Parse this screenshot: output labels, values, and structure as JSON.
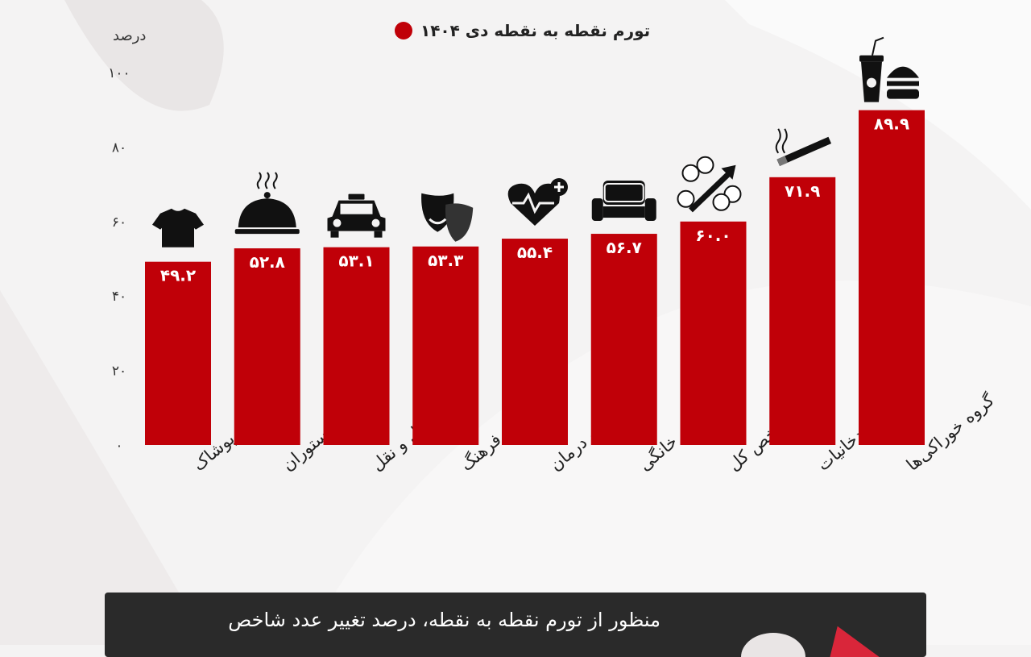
{
  "legend": {
    "label": "تورم نقطه به نقطه دی ۱۴۰۴",
    "color": "#c00008"
  },
  "note": {
    "text": "منظور از تورم نقطه به نقطه، درصد تغییر عدد شاخص"
  },
  "chart_data": {
    "type": "bar",
    "ylabel": "درصد",
    "ylim": [
      0,
      100
    ],
    "yticks": [
      0,
      20,
      40,
      60,
      80,
      100
    ],
    "ytick_labels": [
      "۰",
      "۲۰",
      "۴۰",
      "۶۰",
      "۸۰",
      "۱۰۰"
    ],
    "bar_color": "#c00008",
    "categories": [
      "پوشاک",
      "هتل و رستوران",
      "حمل و نقل",
      "تفریح و فرهنگ",
      "بهداشت و درمان",
      "لوازم خانگی",
      "شاخص کل",
      "دخانیات",
      "گروه خوراکی‌ها"
    ],
    "values": [
      49.2,
      52.8,
      53.1,
      53.3,
      55.4,
      56.7,
      60.0,
      71.9,
      89.9
    ],
    "value_labels": [
      "۴۹.۲",
      "۵۲.۸",
      "۵۳.۱",
      "۵۳.۳",
      "۵۵.۴",
      "۵۶.۷",
      "۶۰.۰",
      "۷۱.۹",
      "۸۹.۹"
    ],
    "icons": [
      "tshirt-icon",
      "cloche-icon",
      "taxi-icon",
      "theater-masks-icon",
      "heart-health-icon",
      "armchair-icon",
      "price-index-icon",
      "cigarette-icon",
      "fast-food-icon"
    ]
  }
}
